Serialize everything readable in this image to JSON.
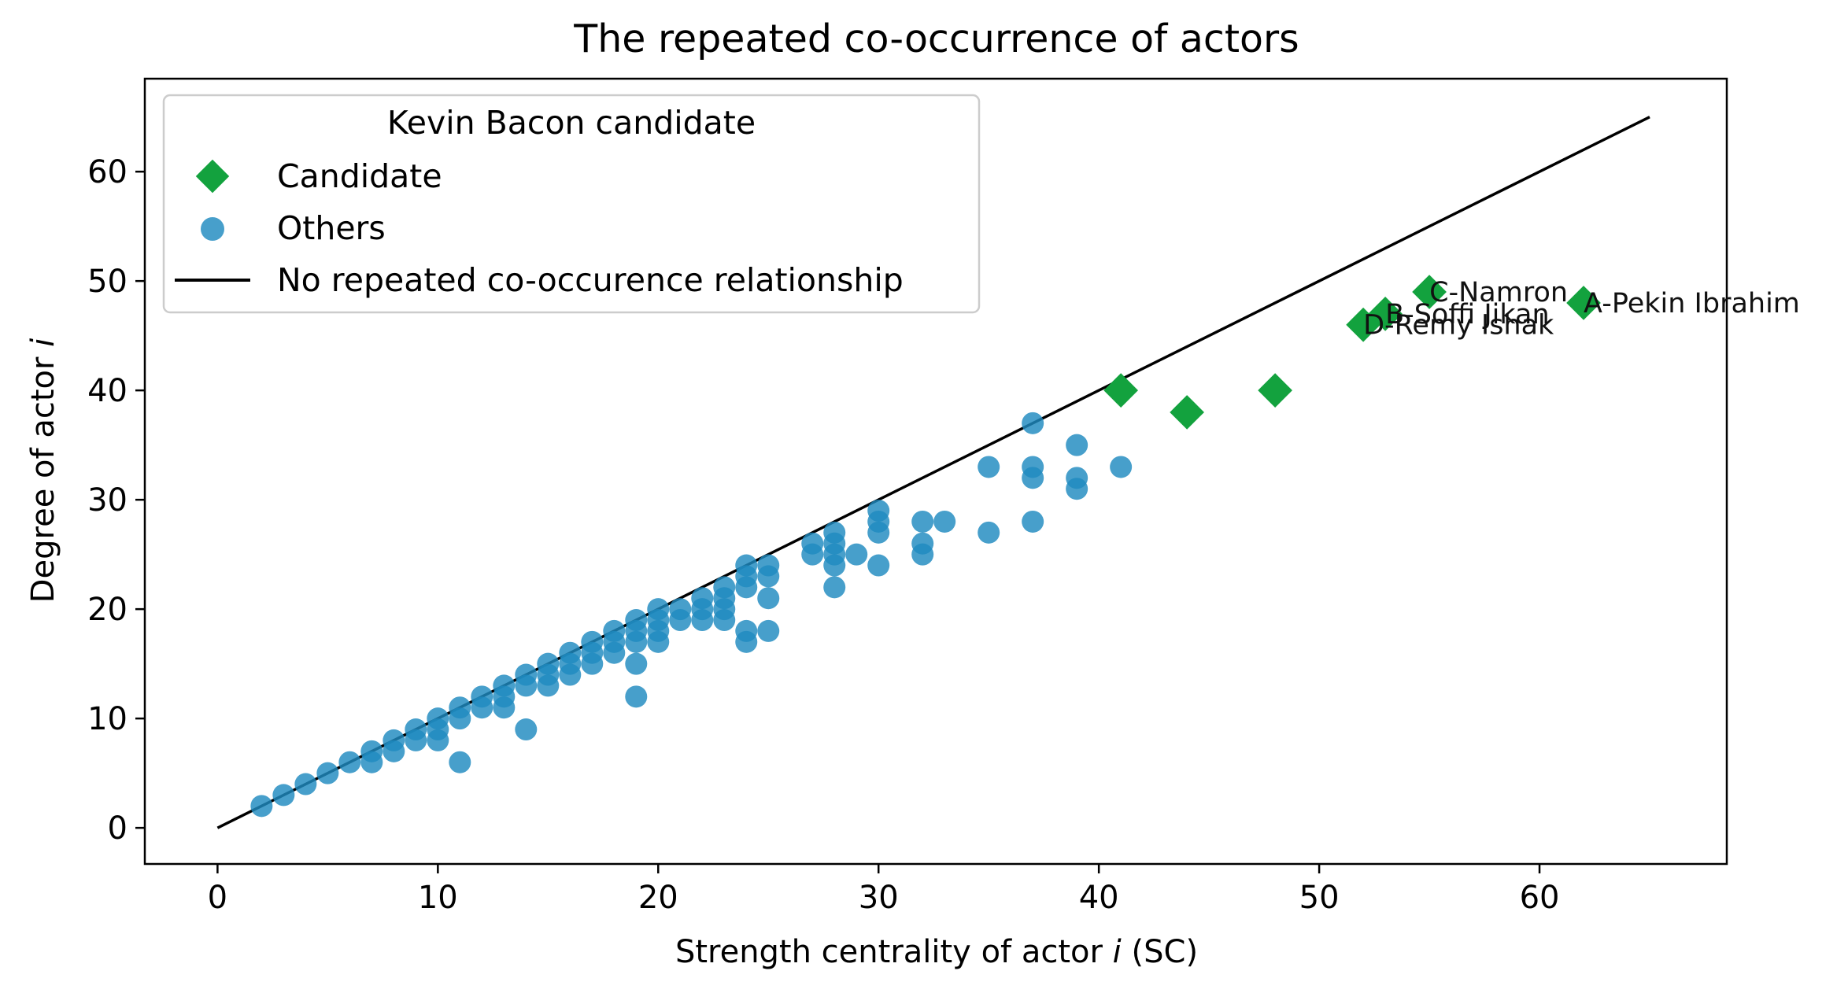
{
  "colors": {
    "candidate": "#13a23e",
    "others": "#1f8ac0",
    "line": "#000000",
    "axes": "#000000",
    "background": "#ffffff"
  },
  "chart_data": {
    "type": "scatter",
    "title": "The repeated co-occurrence of actors",
    "xlabel_prefix": "Strength centrality of actor ",
    "xlabel_var": "i",
    "xlabel_suffix": " (SC)",
    "ylabel_prefix": "Degree of actor ",
    "ylabel_var": "i",
    "xlim": [
      -3.3,
      68.5
    ],
    "ylim": [
      -3.3,
      68.5
    ],
    "xticks": [
      0,
      10,
      20,
      30,
      40,
      50,
      60
    ],
    "yticks": [
      0,
      10,
      20,
      30,
      40,
      50,
      60
    ],
    "grid": false,
    "legend": {
      "title": "Kevin Bacon candidate",
      "position": "upper-left",
      "entries": [
        {
          "label": "Candidate",
          "marker": "diamond"
        },
        {
          "label": "Others",
          "marker": "circle"
        },
        {
          "label": "No repeated co-occurence relationship",
          "marker": "line"
        }
      ]
    },
    "reference_line": {
      "name": "No repeated co-occurence relationship",
      "x": [
        0,
        65
      ],
      "y": [
        0,
        65
      ]
    },
    "series": [
      {
        "name": "Candidate",
        "marker": "diamond",
        "points": [
          {
            "x": 41,
            "y": 40
          },
          {
            "x": 44,
            "y": 38
          },
          {
            "x": 48,
            "y": 40
          },
          {
            "x": 52,
            "y": 46,
            "label": "D-Remy Ishak"
          },
          {
            "x": 53,
            "y": 47,
            "label": "B-Soffi Jikan"
          },
          {
            "x": 55,
            "y": 49,
            "label": "C-Namron"
          },
          {
            "x": 62,
            "y": 48,
            "label": "A-Pekin Ibrahim"
          }
        ]
      },
      {
        "name": "Others",
        "marker": "circle",
        "points": [
          {
            "x": 2,
            "y": 2
          },
          {
            "x": 3,
            "y": 3
          },
          {
            "x": 4,
            "y": 4
          },
          {
            "x": 5,
            "y": 5
          },
          {
            "x": 6,
            "y": 6
          },
          {
            "x": 7,
            "y": 7
          },
          {
            "x": 7,
            "y": 6
          },
          {
            "x": 8,
            "y": 8
          },
          {
            "x": 8,
            "y": 7
          },
          {
            "x": 9,
            "y": 9
          },
          {
            "x": 9,
            "y": 8
          },
          {
            "x": 10,
            "y": 10
          },
          {
            "x": 10,
            "y": 9
          },
          {
            "x": 10,
            "y": 8
          },
          {
            "x": 11,
            "y": 11
          },
          {
            "x": 11,
            "y": 10
          },
          {
            "x": 11,
            "y": 6
          },
          {
            "x": 12,
            "y": 12
          },
          {
            "x": 12,
            "y": 11
          },
          {
            "x": 13,
            "y": 13
          },
          {
            "x": 13,
            "y": 12
          },
          {
            "x": 13,
            "y": 11
          },
          {
            "x": 14,
            "y": 14
          },
          {
            "x": 14,
            "y": 13
          },
          {
            "x": 14,
            "y": 9
          },
          {
            "x": 15,
            "y": 15
          },
          {
            "x": 15,
            "y": 14
          },
          {
            "x": 15,
            "y": 13
          },
          {
            "x": 16,
            "y": 16
          },
          {
            "x": 16,
            "y": 15
          },
          {
            "x": 16,
            "y": 14
          },
          {
            "x": 17,
            "y": 17
          },
          {
            "x": 17,
            "y": 16
          },
          {
            "x": 17,
            "y": 15
          },
          {
            "x": 18,
            "y": 18
          },
          {
            "x": 18,
            "y": 17
          },
          {
            "x": 18,
            "y": 16
          },
          {
            "x": 19,
            "y": 19
          },
          {
            "x": 19,
            "y": 18
          },
          {
            "x": 19,
            "y": 17
          },
          {
            "x": 19,
            "y": 15
          },
          {
            "x": 19,
            "y": 12
          },
          {
            "x": 20,
            "y": 20
          },
          {
            "x": 20,
            "y": 19
          },
          {
            "x": 20,
            "y": 18
          },
          {
            "x": 20,
            "y": 17
          },
          {
            "x": 21,
            "y": 20
          },
          {
            "x": 21,
            "y": 19
          },
          {
            "x": 22,
            "y": 21
          },
          {
            "x": 22,
            "y": 20
          },
          {
            "x": 22,
            "y": 19
          },
          {
            "x": 23,
            "y": 22
          },
          {
            "x": 23,
            "y": 21
          },
          {
            "x": 23,
            "y": 20
          },
          {
            "x": 23,
            "y": 19
          },
          {
            "x": 24,
            "y": 24
          },
          {
            "x": 24,
            "y": 23
          },
          {
            "x": 24,
            "y": 22
          },
          {
            "x": 24,
            "y": 18
          },
          {
            "x": 24,
            "y": 17
          },
          {
            "x": 25,
            "y": 24
          },
          {
            "x": 25,
            "y": 23
          },
          {
            "x": 25,
            "y": 21
          },
          {
            "x": 25,
            "y": 18
          },
          {
            "x": 27,
            "y": 26
          },
          {
            "x": 27,
            "y": 25
          },
          {
            "x": 28,
            "y": 27
          },
          {
            "x": 28,
            "y": 26
          },
          {
            "x": 28,
            "y": 25
          },
          {
            "x": 28,
            "y": 24
          },
          {
            "x": 28,
            "y": 22
          },
          {
            "x": 29,
            "y": 25
          },
          {
            "x": 30,
            "y": 29
          },
          {
            "x": 30,
            "y": 28
          },
          {
            "x": 30,
            "y": 27
          },
          {
            "x": 30,
            "y": 24
          },
          {
            "x": 32,
            "y": 28
          },
          {
            "x": 32,
            "y": 26
          },
          {
            "x": 32,
            "y": 25
          },
          {
            "x": 33,
            "y": 28
          },
          {
            "x": 35,
            "y": 33
          },
          {
            "x": 35,
            "y": 27
          },
          {
            "x": 37,
            "y": 37
          },
          {
            "x": 37,
            "y": 33
          },
          {
            "x": 37,
            "y": 32
          },
          {
            "x": 37,
            "y": 28
          },
          {
            "x": 39,
            "y": 35
          },
          {
            "x": 39,
            "y": 32
          },
          {
            "x": 39,
            "y": 31
          },
          {
            "x": 41,
            "y": 33
          }
        ]
      }
    ]
  }
}
